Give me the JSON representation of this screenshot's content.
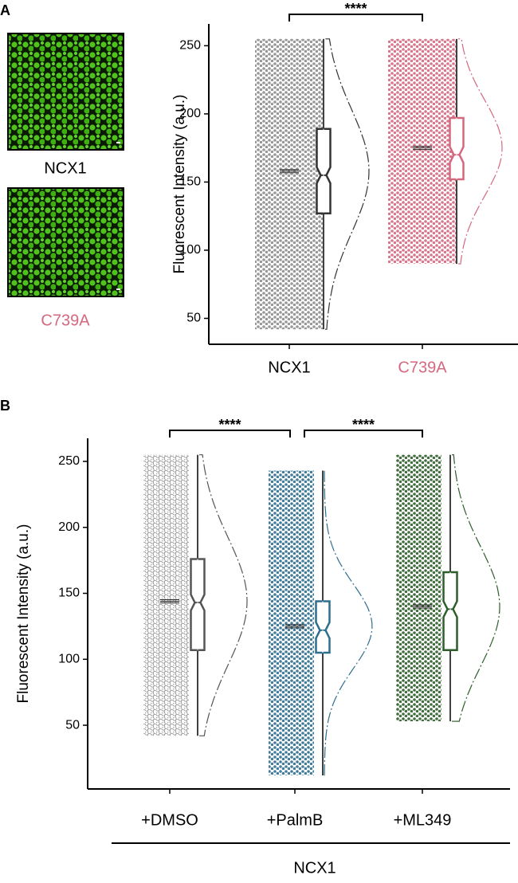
{
  "panels": [
    "A",
    "B"
  ],
  "images": [
    {
      "label": "NCX1",
      "label_color": "#000000"
    },
    {
      "label": "C739A",
      "label_color": "#d4687f"
    }
  ],
  "chart_data": [
    {
      "type": "raincloud",
      "y_label": "Fluorescent Intensity (a.u.)",
      "categories": [
        "NCX1",
        "C739A"
      ],
      "category_colors": [
        "#000000",
        "#d4687f"
      ],
      "colors": [
        "#8c8c8c",
        "#d4687f"
      ],
      "box_colors": [
        "#333333",
        "#d4687f"
      ],
      "min": [
        42,
        90
      ],
      "q1": [
        127,
        152
      ],
      "median": [
        155,
        170
      ],
      "q3": [
        189,
        197
      ],
      "max": [
        255,
        255
      ],
      "mean": [
        158,
        175
      ],
      "sd": [
        45,
        35
      ],
      "ylim": [
        31,
        266
      ],
      "yticks": [
        50,
        100,
        150,
        200,
        250
      ],
      "brackets": [
        {
          "label": "****",
          "between": [
            "NCX1",
            "C739A"
          ]
        }
      ]
    },
    {
      "type": "raincloud",
      "y_label": "Fluorescent Intensity (a.u.)",
      "categories": [
        "+DMSO",
        "+PalmB",
        "+ML349"
      ],
      "category_colors": [
        "#000000",
        "#000000",
        "#000000"
      ],
      "colors": [
        "#8c8c8c",
        "#2e6e8e",
        "#2d5e2a"
      ],
      "box_colors": [
        "#555555",
        "#2e6e8e",
        "#2d5e2a"
      ],
      "min": [
        42,
        12,
        53
      ],
      "q1": [
        107,
        105,
        107
      ],
      "median": [
        143,
        122,
        138
      ],
      "q3": [
        176,
        144,
        166
      ],
      "max": [
        255,
        243,
        255
      ],
      "mean": [
        144,
        125,
        140
      ],
      "sd": [
        48,
        32,
        45
      ],
      "ylim": [
        1.7,
        267.5
      ],
      "yticks": [
        50,
        100,
        150,
        200,
        250
      ],
      "brackets": [
        {
          "label": "****",
          "between": [
            "+DMSO",
            "+PalmB"
          ]
        },
        {
          "label": "****",
          "between": [
            "+PalmB",
            "+ML349"
          ]
        }
      ],
      "group_label": "NCX1"
    }
  ]
}
